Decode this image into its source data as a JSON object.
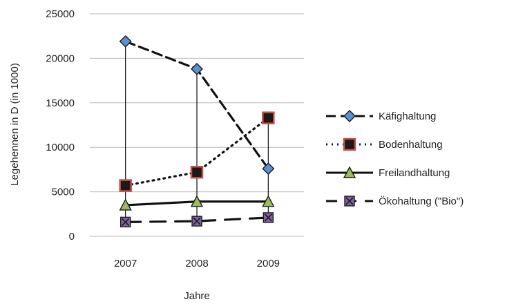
{
  "chart_data": {
    "type": "line",
    "categories": [
      "2007",
      "2008",
      "2009"
    ],
    "series": [
      {
        "name": "Käfighaltung",
        "values": [
          21900,
          18800,
          7600
        ],
        "color": "#5b8fd6",
        "line_style": "dashed",
        "marker": "diamond"
      },
      {
        "name": "Bodenhaltung",
        "values": [
          5700,
          7200,
          13300
        ],
        "color": "#c8504a",
        "line_style": "dotted",
        "marker": "square"
      },
      {
        "name": "Freilandhaltung",
        "values": [
          3500,
          3900,
          3900
        ],
        "color": "#9bbb59",
        "line_style": "solid",
        "marker": "triangle"
      },
      {
        "name": "Ökohaltung (\"Bio\")",
        "values": [
          1600,
          1700,
          2100
        ],
        "color": "#8064a2",
        "line_style": "long-dash",
        "marker": "x-square"
      }
    ],
    "title": "",
    "xlabel": "Jahre",
    "ylabel": "Legehennen in D (in 1000)",
    "ylim": [
      0,
      25000
    ],
    "yticks": [
      "0",
      "5000",
      "10000",
      "15000",
      "20000",
      "25000"
    ],
    "grid": true,
    "drop_lines": true,
    "legend": "right"
  }
}
